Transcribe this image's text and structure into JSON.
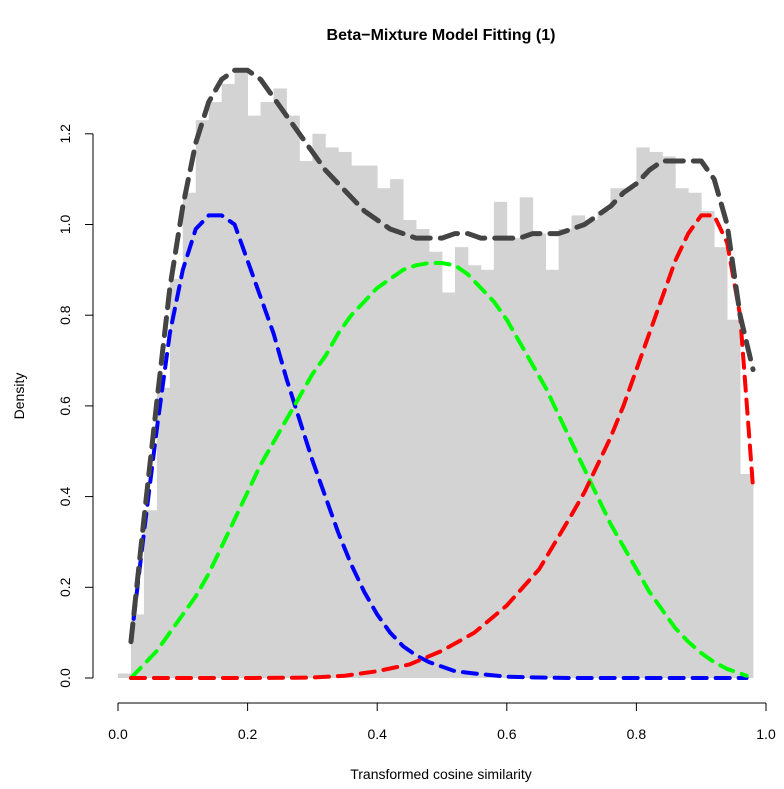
{
  "chart_data": {
    "type": "bar",
    "title": "Beta−Mixture Model Fitting (1)",
    "xlabel": "Transformed cosine similarity",
    "ylabel": "Density",
    "xlim": [
      0,
      1
    ],
    "ylim": [
      0,
      1.3
    ],
    "grid": false,
    "xticks": [
      "0.0",
      "0.2",
      "0.4",
      "0.6",
      "0.8",
      "1.0"
    ],
    "yticks": [
      "0.0",
      "0.2",
      "0.4",
      "0.6",
      "0.8",
      "1.0",
      "1.2"
    ],
    "histogram": {
      "bin_width": 0.02,
      "color": "#d3d3d3",
      "x": [
        0.0,
        0.02,
        0.04,
        0.06,
        0.08,
        0.1,
        0.12,
        0.14,
        0.16,
        0.18,
        0.2,
        0.22,
        0.24,
        0.26,
        0.28,
        0.3,
        0.32,
        0.34,
        0.36,
        0.38,
        0.4,
        0.42,
        0.44,
        0.46,
        0.48,
        0.5,
        0.52,
        0.54,
        0.56,
        0.58,
        0.6,
        0.62,
        0.64,
        0.66,
        0.68,
        0.7,
        0.72,
        0.74,
        0.76,
        0.78,
        0.8,
        0.82,
        0.84,
        0.86,
        0.88,
        0.9,
        0.92,
        0.94,
        0.96,
        0.98
      ],
      "density": [
        0.01,
        0.14,
        0.37,
        0.64,
        0.88,
        1.07,
        1.23,
        1.27,
        1.31,
        1.34,
        1.24,
        1.27,
        1.3,
        1.24,
        1.14,
        1.2,
        1.17,
        1.16,
        1.13,
        1.13,
        1.08,
        1.1,
        1.01,
        0.99,
        0.94,
        0.85,
        0.95,
        0.91,
        0.9,
        1.05,
        0.97,
        1.06,
        0.98,
        0.9,
        0.99,
        1.02,
        1.01,
        1.03,
        1.08,
        1.08,
        1.17,
        1.16,
        1.15,
        1.08,
        1.07,
        1.03,
        0.95,
        0.79,
        0.45,
        0.0
      ]
    },
    "series": [
      {
        "color": "#0000ff",
        "style": "dashed",
        "x": [
          0.02,
          0.04,
          0.06,
          0.08,
          0.1,
          0.12,
          0.14,
          0.16,
          0.18,
          0.2,
          0.22,
          0.24,
          0.26,
          0.28,
          0.3,
          0.32,
          0.34,
          0.36,
          0.38,
          0.4,
          0.42,
          0.44,
          0.46,
          0.48,
          0.5,
          0.52,
          0.55,
          0.6,
          0.65,
          0.7,
          0.8,
          0.9,
          0.97
        ],
        "values": [
          0.08,
          0.32,
          0.55,
          0.76,
          0.9,
          0.99,
          1.02,
          1.02,
          1.0,
          0.92,
          0.84,
          0.76,
          0.66,
          0.57,
          0.48,
          0.4,
          0.32,
          0.25,
          0.19,
          0.14,
          0.1,
          0.07,
          0.05,
          0.035,
          0.025,
          0.015,
          0.01,
          0.003,
          0.001,
          0.0,
          0.0,
          0.0,
          0.0
        ]
      },
      {
        "color": "#00ff00",
        "style": "dashed",
        "x": [
          0.02,
          0.04,
          0.06,
          0.08,
          0.1,
          0.12,
          0.14,
          0.16,
          0.18,
          0.2,
          0.22,
          0.24,
          0.26,
          0.28,
          0.3,
          0.32,
          0.34,
          0.36,
          0.38,
          0.4,
          0.42,
          0.44,
          0.46,
          0.48,
          0.5,
          0.52,
          0.54,
          0.56,
          0.58,
          0.6,
          0.62,
          0.64,
          0.66,
          0.68,
          0.7,
          0.72,
          0.74,
          0.76,
          0.78,
          0.8,
          0.82,
          0.84,
          0.86,
          0.88,
          0.9,
          0.92,
          0.94,
          0.96,
          0.97
        ],
        "values": [
          0.0,
          0.03,
          0.06,
          0.1,
          0.14,
          0.18,
          0.23,
          0.29,
          0.35,
          0.41,
          0.47,
          0.52,
          0.57,
          0.62,
          0.67,
          0.71,
          0.76,
          0.8,
          0.83,
          0.86,
          0.88,
          0.9,
          0.91,
          0.915,
          0.915,
          0.91,
          0.89,
          0.86,
          0.83,
          0.79,
          0.74,
          0.69,
          0.64,
          0.58,
          0.52,
          0.46,
          0.4,
          0.34,
          0.29,
          0.24,
          0.19,
          0.15,
          0.11,
          0.08,
          0.055,
          0.035,
          0.02,
          0.01,
          0.005
        ]
      },
      {
        "color": "#ff0000",
        "style": "dashed",
        "x": [
          0.02,
          0.1,
          0.2,
          0.3,
          0.35,
          0.4,
          0.45,
          0.5,
          0.55,
          0.6,
          0.65,
          0.7,
          0.72,
          0.74,
          0.76,
          0.78,
          0.8,
          0.82,
          0.84,
          0.86,
          0.88,
          0.9,
          0.92,
          0.94,
          0.96,
          0.98
        ],
        "values": [
          0.0,
          0.0,
          0.0,
          0.001,
          0.005,
          0.015,
          0.03,
          0.06,
          0.1,
          0.16,
          0.24,
          0.36,
          0.41,
          0.47,
          0.53,
          0.6,
          0.68,
          0.76,
          0.84,
          0.92,
          0.98,
          1.02,
          1.02,
          0.96,
          0.8,
          0.42
        ]
      },
      {
        "color": "#444444",
        "style": "dashed",
        "x": [
          0.02,
          0.04,
          0.06,
          0.08,
          0.1,
          0.12,
          0.14,
          0.16,
          0.18,
          0.2,
          0.22,
          0.24,
          0.26,
          0.28,
          0.3,
          0.32,
          0.34,
          0.36,
          0.38,
          0.4,
          0.42,
          0.44,
          0.46,
          0.48,
          0.5,
          0.52,
          0.54,
          0.56,
          0.58,
          0.6,
          0.62,
          0.64,
          0.66,
          0.68,
          0.7,
          0.72,
          0.74,
          0.76,
          0.78,
          0.8,
          0.82,
          0.84,
          0.86,
          0.88,
          0.9,
          0.92,
          0.94,
          0.96,
          0.98
        ],
        "values": [
          0.08,
          0.35,
          0.61,
          0.86,
          1.04,
          1.18,
          1.27,
          1.32,
          1.34,
          1.34,
          1.32,
          1.28,
          1.24,
          1.2,
          1.16,
          1.12,
          1.09,
          1.06,
          1.03,
          1.01,
          0.99,
          0.98,
          0.97,
          0.97,
          0.97,
          0.98,
          0.98,
          0.97,
          0.97,
          0.97,
          0.97,
          0.98,
          0.98,
          0.98,
          0.99,
          1.0,
          1.02,
          1.04,
          1.07,
          1.09,
          1.12,
          1.14,
          1.14,
          1.14,
          1.14,
          1.1,
          1.0,
          0.8,
          0.68
        ]
      }
    ]
  }
}
